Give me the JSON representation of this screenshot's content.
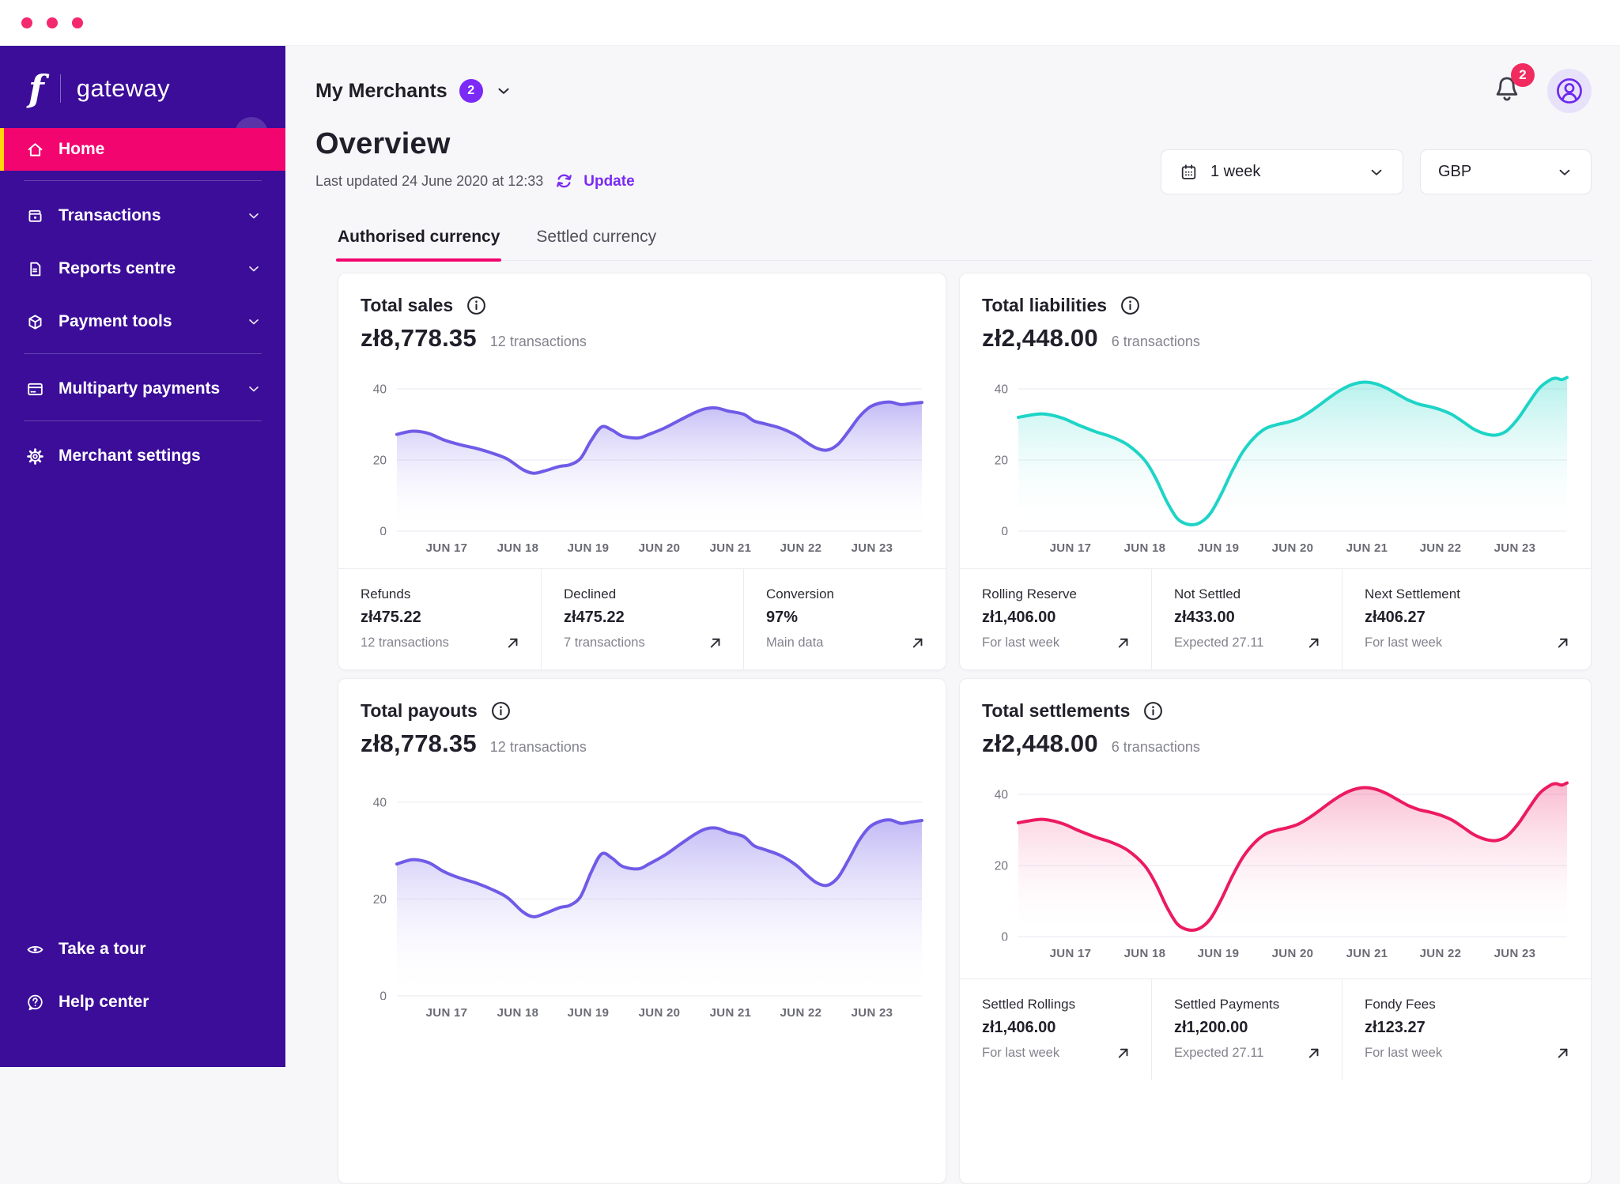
{
  "colors": {
    "sidebar_bg": "#3B0D99",
    "brand_pink": "#F2056F",
    "accent_yellow": "#FFD60A",
    "accent_purple": "#7B2BF5",
    "notification_red": "#F12A5F",
    "page_bg": "#F7F7F9",
    "chart_purple": "#6F5BE7",
    "chart_teal": "#1ED4C6",
    "chart_pink": "#EC1A62"
  },
  "sidebar": {
    "logo_glyph": "f",
    "logo_text": "gateway",
    "items": [
      {
        "label": "Home",
        "icon": "home-icon",
        "active": true,
        "chevron": false
      },
      {
        "label": "Transactions",
        "icon": "transactions-icon",
        "active": false,
        "chevron": true
      },
      {
        "label": "Reports centre",
        "icon": "reports-icon",
        "active": false,
        "chevron": true
      },
      {
        "label": "Payment tools",
        "icon": "payment-tools-icon",
        "active": false,
        "chevron": true
      },
      {
        "label": "Multiparty payments",
        "icon": "multiparty-icon",
        "active": false,
        "chevron": true
      },
      {
        "label": "Merchant settings",
        "icon": "settings-icon",
        "active": false,
        "chevron": false
      }
    ],
    "footer_items": [
      {
        "label": "Take a tour",
        "icon": "eye-icon"
      },
      {
        "label": "Help center",
        "icon": "help-icon"
      }
    ]
  },
  "header": {
    "merchants_label": "My Merchants",
    "merchants_badge": "2",
    "notifications_count": "2",
    "page_title": "Overview",
    "last_updated": "Last updated 24 June 2020 at 12:33",
    "update_label": "Update",
    "period_value": "1 week",
    "currency_value": "GBP"
  },
  "tabs": [
    {
      "label": "Authorised currency",
      "active": true
    },
    {
      "label": "Settled currency",
      "active": false
    }
  ],
  "cards": [
    {
      "title": "Total sales",
      "amount": "zł8,778.35",
      "transactions": "12 transactions",
      "stats": [
        {
          "label": "Refunds",
          "value": "zł475.22",
          "sub": "12 transactions"
        },
        {
          "label": "Declined",
          "value": "zł475.22",
          "sub": "7 transactions"
        },
        {
          "label": "Conversion",
          "value": "97%",
          "sub": "Main data"
        }
      ]
    },
    {
      "title": "Total liabilities",
      "amount": "zł2,448.00",
      "transactions": "6 transactions",
      "stats": [
        {
          "label": "Rolling Reserve",
          "value": "zł1,406.00",
          "sub": "For last week"
        },
        {
          "label": "Not Settled",
          "value": "zł433.00",
          "sub": "Expected 27.11"
        },
        {
          "label": "Next Settlement",
          "value": "zł406.27",
          "sub": "For last week"
        }
      ]
    },
    {
      "title": "Total payouts",
      "amount": "zł8,778.35",
      "transactions": "12 transactions",
      "stats": []
    },
    {
      "title": "Total settlements",
      "amount": "zł2,448.00",
      "transactions": "6 transactions",
      "stats": [
        {
          "label": "Settled Rollings",
          "value": "zł1,406.00",
          "sub": "For last week"
        },
        {
          "label": "Settled Payments",
          "value": "zł1,200.00",
          "sub": "Expected 27.11"
        },
        {
          "label": "Fondy Fees",
          "value": "zł123.27",
          "sub": "For last week"
        }
      ]
    }
  ],
  "chart_data": [
    {
      "type": "line",
      "title": "Total sales",
      "x_labels": [
        "JUN 17",
        "JUN 18",
        "JUN 19",
        "JUN 20",
        "JUN 21",
        "JUN 22",
        "JUN 23"
      ],
      "y_ticks": [
        0,
        20,
        40
      ],
      "y_max": 46,
      "grid": "horizontal",
      "legend": "none",
      "series": [
        {
          "name": "Total sales",
          "color": "#6F5BE7",
          "points": [
            [
              0,
              27.2
            ],
            [
              3,
              28.1
            ],
            [
              6,
              27.5
            ],
            [
              9,
              25.6
            ],
            [
              12,
              24.3
            ],
            [
              15,
              23.3
            ],
            [
              18,
              22.0
            ],
            [
              21,
              20.3
            ],
            [
              24,
              17.3
            ],
            [
              26,
              16.3
            ],
            [
              28,
              16.9
            ],
            [
              31,
              18.2
            ],
            [
              33,
              18.7
            ],
            [
              35,
              20.5
            ],
            [
              37,
              25.5
            ],
            [
              39,
              29.3
            ],
            [
              41,
              28.4
            ],
            [
              43,
              26.7
            ],
            [
              46,
              26.2
            ],
            [
              48,
              27.2
            ],
            [
              51,
              29.0
            ],
            [
              54,
              31.3
            ],
            [
              57,
              33.5
            ],
            [
              59,
              34.5
            ],
            [
              61,
              34.6
            ],
            [
              63,
              33.8
            ],
            [
              66,
              32.9
            ],
            [
              68,
              31.0
            ],
            [
              70,
              30.2
            ],
            [
              73,
              29.0
            ],
            [
              76,
              27.0
            ],
            [
              78,
              25.0
            ],
            [
              80,
              23.3
            ],
            [
              82,
              22.8
            ],
            [
              84,
              24.4
            ],
            [
              86,
              28.0
            ],
            [
              88,
              32.0
            ],
            [
              90,
              34.8
            ],
            [
              92,
              36.0
            ],
            [
              94,
              36.3
            ],
            [
              96,
              35.6
            ],
            [
              98,
              35.9
            ],
            [
              100,
              36.2
            ]
          ]
        }
      ]
    },
    {
      "type": "line",
      "title": "Total liabilities",
      "x_labels": [
        "JUN 17",
        "JUN 18",
        "JUN 19",
        "JUN 20",
        "JUN 21",
        "JUN 22",
        "JUN 23"
      ],
      "y_ticks": [
        0,
        20,
        40
      ],
      "y_max": 46,
      "grid": "horizontal",
      "legend": "none",
      "series": [
        {
          "name": "Total liabilities",
          "color": "#1ED4C6",
          "points": [
            [
              0,
              32.0
            ],
            [
              3,
              32.8
            ],
            [
              5,
              32.9
            ],
            [
              8,
              31.8
            ],
            [
              11,
              29.8
            ],
            [
              14,
              28.0
            ],
            [
              17,
              26.5
            ],
            [
              20,
              24.2
            ],
            [
              23,
              20.0
            ],
            [
              25,
              15.0
            ],
            [
              27,
              8.5
            ],
            [
              29,
              3.5
            ],
            [
              31,
              1.9
            ],
            [
              33,
              2.3
            ],
            [
              35,
              5.0
            ],
            [
              37,
              10.5
            ],
            [
              39,
              17.0
            ],
            [
              41,
              22.5
            ],
            [
              43,
              26.3
            ],
            [
              45,
              28.8
            ],
            [
              47,
              29.9
            ],
            [
              49,
              30.6
            ],
            [
              51,
              31.6
            ],
            [
              53,
              33.4
            ],
            [
              55,
              35.6
            ],
            [
              57,
              37.9
            ],
            [
              59,
              39.9
            ],
            [
              61,
              41.3
            ],
            [
              63,
              41.9
            ],
            [
              65,
              41.5
            ],
            [
              67,
              40.3
            ],
            [
              69,
              38.6
            ],
            [
              71,
              36.9
            ],
            [
              73,
              35.7
            ],
            [
              75,
              35.0
            ],
            [
              77,
              34.1
            ],
            [
              79,
              32.8
            ],
            [
              81,
              30.8
            ],
            [
              83,
              28.7
            ],
            [
              85,
              27.4
            ],
            [
              87,
              27.0
            ],
            [
              89,
              28.2
            ],
            [
              91,
              31.5
            ],
            [
              93,
              36.0
            ],
            [
              95,
              40.3
            ],
            [
              97,
              42.6
            ],
            [
              98,
              43.0
            ],
            [
              99,
              42.6
            ],
            [
              100,
              43.2
            ]
          ]
        }
      ]
    },
    {
      "type": "line",
      "title": "Total payouts",
      "x_labels": [
        "JUN 17",
        "JUN 18",
        "JUN 19",
        "JUN 20",
        "JUN 21",
        "JUN 22",
        "JUN 23"
      ],
      "y_ticks": [
        0,
        20,
        40
      ],
      "y_max": 46,
      "grid": "horizontal",
      "legend": "none",
      "series": [
        {
          "name": "Total payouts",
          "color": "#6F5BE7",
          "points": [
            [
              0,
              27.2
            ],
            [
              3,
              28.1
            ],
            [
              6,
              27.5
            ],
            [
              9,
              25.6
            ],
            [
              12,
              24.3
            ],
            [
              15,
              23.3
            ],
            [
              18,
              22.0
            ],
            [
              21,
              20.3
            ],
            [
              24,
              17.3
            ],
            [
              26,
              16.3
            ],
            [
              28,
              16.9
            ],
            [
              31,
              18.2
            ],
            [
              33,
              18.7
            ],
            [
              35,
              20.5
            ],
            [
              37,
              25.5
            ],
            [
              39,
              29.3
            ],
            [
              41,
              28.4
            ],
            [
              43,
              26.7
            ],
            [
              46,
              26.2
            ],
            [
              48,
              27.2
            ],
            [
              51,
              29.0
            ],
            [
              54,
              31.3
            ],
            [
              57,
              33.5
            ],
            [
              59,
              34.5
            ],
            [
              61,
              34.6
            ],
            [
              63,
              33.8
            ],
            [
              66,
              32.9
            ],
            [
              68,
              31.0
            ],
            [
              70,
              30.2
            ],
            [
              73,
              29.0
            ],
            [
              76,
              27.0
            ],
            [
              78,
              25.0
            ],
            [
              80,
              23.3
            ],
            [
              82,
              22.8
            ],
            [
              84,
              24.4
            ],
            [
              86,
              28.0
            ],
            [
              88,
              32.0
            ],
            [
              90,
              34.8
            ],
            [
              92,
              36.0
            ],
            [
              94,
              36.3
            ],
            [
              96,
              35.6
            ],
            [
              98,
              35.9
            ],
            [
              100,
              36.2
            ]
          ]
        }
      ]
    },
    {
      "type": "line",
      "title": "Total settlements",
      "x_labels": [
        "JUN 17",
        "JUN 18",
        "JUN 19",
        "JUN 20",
        "JUN 21",
        "JUN 22",
        "JUN 23"
      ],
      "y_ticks": [
        0,
        20,
        40
      ],
      "y_max": 46,
      "grid": "horizontal",
      "legend": "none",
      "series": [
        {
          "name": "Total settlements",
          "color": "#EC1A62",
          "points": [
            [
              0,
              32.0
            ],
            [
              3,
              32.8
            ],
            [
              5,
              32.9
            ],
            [
              8,
              31.8
            ],
            [
              11,
              29.8
            ],
            [
              14,
              28.0
            ],
            [
              17,
              26.5
            ],
            [
              20,
              24.2
            ],
            [
              23,
              20.0
            ],
            [
              25,
              15.0
            ],
            [
              27,
              8.5
            ],
            [
              29,
              3.5
            ],
            [
              31,
              1.9
            ],
            [
              33,
              2.3
            ],
            [
              35,
              5.0
            ],
            [
              37,
              10.5
            ],
            [
              39,
              17.0
            ],
            [
              41,
              22.5
            ],
            [
              43,
              26.3
            ],
            [
              45,
              28.8
            ],
            [
              47,
              29.9
            ],
            [
              49,
              30.6
            ],
            [
              51,
              31.6
            ],
            [
              53,
              33.4
            ],
            [
              55,
              35.6
            ],
            [
              57,
              37.9
            ],
            [
              59,
              39.9
            ],
            [
              61,
              41.3
            ],
            [
              63,
              41.9
            ],
            [
              65,
              41.5
            ],
            [
              67,
              40.3
            ],
            [
              69,
              38.6
            ],
            [
              71,
              36.9
            ],
            [
              73,
              35.7
            ],
            [
              75,
              35.0
            ],
            [
              77,
              34.1
            ],
            [
              79,
              32.8
            ],
            [
              81,
              30.8
            ],
            [
              83,
              28.7
            ],
            [
              85,
              27.4
            ],
            [
              87,
              27.0
            ],
            [
              89,
              28.2
            ],
            [
              91,
              31.5
            ],
            [
              93,
              36.0
            ],
            [
              95,
              40.3
            ],
            [
              97,
              42.6
            ],
            [
              98,
              43.0
            ],
            [
              99,
              42.6
            ],
            [
              100,
              43.2
            ]
          ]
        }
      ]
    }
  ]
}
